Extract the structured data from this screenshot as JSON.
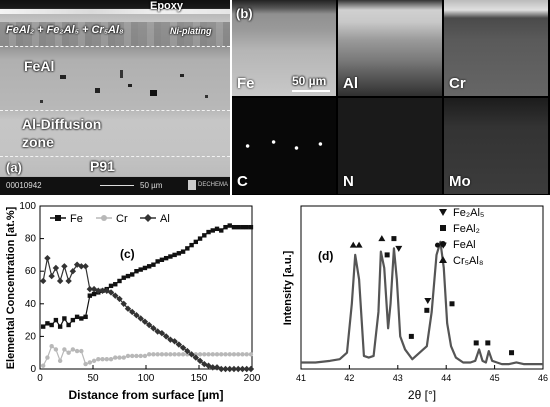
{
  "panel_a": {
    "epoxy_label": "Epoxy",
    "phases_label": "FeAl₂ + Fe₂Al₅ + Cr₅Al₈",
    "ni_plating_label": "Ni-plating",
    "feal_label": "FeAl",
    "al_diffusion_label": "Al-Diffusion",
    "zone_label": "zone",
    "p91_label": "P91",
    "panel_letter": "(a)",
    "image_id": "00010942",
    "scale_bar": "50 µm",
    "logo_text": "DECHEMA"
  },
  "panel_b": {
    "panel_letter": "(b)",
    "scale_bar": "50 µm",
    "maps": [
      "Fe",
      "Al",
      "Cr",
      "C",
      "N",
      "Mo"
    ]
  },
  "chart_data": [
    {
      "type": "line",
      "panel_letter": "(c)",
      "xlabel": "Distance from surface [µm]",
      "ylabel": "Elemental Concentration [at.%]",
      "xlim": [
        0,
        200
      ],
      "ylim": [
        0,
        100
      ],
      "xticks": [
        0,
        50,
        100,
        150,
        200
      ],
      "yticks": [
        0,
        20,
        40,
        60,
        80,
        100
      ],
      "legend_position": "top",
      "series": [
        {
          "name": "Fe",
          "color": "#111111",
          "marker": "square",
          "x": [
            3,
            7,
            11,
            15,
            19,
            23,
            27,
            31,
            35,
            39,
            43,
            47,
            51,
            55,
            59,
            63,
            67,
            71,
            75,
            79,
            83,
            87,
            91,
            95,
            99,
            103,
            107,
            111,
            115,
            119,
            123,
            127,
            131,
            135,
            139,
            143,
            147,
            151,
            155,
            159,
            163,
            167,
            171,
            175,
            179,
            183,
            187,
            191,
            195,
            199
          ],
          "y": [
            26,
            28,
            27,
            30,
            26,
            31,
            27,
            30,
            32,
            31,
            32,
            45,
            46,
            47,
            48,
            49,
            51,
            52,
            54,
            56,
            57,
            58,
            60,
            61,
            62,
            63,
            64,
            66,
            67,
            68,
            69,
            70,
            71,
            72,
            74,
            76,
            78,
            80,
            82,
            84,
            85,
            86,
            85,
            87,
            88,
            87,
            87,
            87,
            87,
            87
          ]
        },
        {
          "name": "Cr",
          "color": "#b8b8b8",
          "marker": "circle",
          "x": [
            3,
            7,
            11,
            15,
            19,
            23,
            27,
            31,
            35,
            39,
            43,
            47,
            51,
            55,
            59,
            63,
            67,
            71,
            75,
            79,
            83,
            87,
            91,
            95,
            99,
            103,
            107,
            111,
            115,
            119,
            123,
            127,
            131,
            135,
            139,
            143,
            147,
            151,
            155,
            159,
            163,
            167,
            171,
            175,
            179,
            183,
            187,
            191,
            195,
            199
          ],
          "y": [
            2,
            7,
            14,
            12,
            5,
            12,
            10,
            12,
            11,
            11,
            3,
            4,
            5,
            6,
            6,
            6,
            6,
            7,
            7,
            7,
            8,
            8,
            8,
            8,
            8,
            9,
            9,
            9,
            9,
            9,
            9,
            9,
            9,
            9,
            9,
            9,
            9,
            9,
            9,
            9,
            9,
            9,
            9,
            9,
            9,
            9,
            9,
            9,
            9,
            9
          ]
        },
        {
          "name": "Al",
          "color": "#333333",
          "marker": "diamond",
          "x": [
            3,
            7,
            11,
            15,
            19,
            23,
            27,
            31,
            35,
            39,
            43,
            47,
            51,
            55,
            59,
            63,
            67,
            71,
            75,
            79,
            83,
            87,
            91,
            95,
            99,
            103,
            107,
            111,
            115,
            119,
            123,
            127,
            131,
            135,
            139,
            143,
            147,
            151,
            155,
            159,
            163,
            167,
            171,
            175,
            179,
            183,
            187,
            191,
            195,
            199
          ],
          "y": [
            54,
            68,
            57,
            62,
            54,
            63,
            54,
            60,
            64,
            63,
            63,
            49,
            49,
            48,
            48,
            48,
            47,
            45,
            43,
            40,
            37,
            35,
            33,
            31,
            29,
            27,
            25,
            23,
            22,
            20,
            18,
            17,
            15,
            13,
            11,
            9,
            7,
            5,
            3,
            2,
            1,
            1,
            0,
            0,
            0,
            0,
            0,
            0,
            0,
            0
          ]
        }
      ]
    },
    {
      "type": "line",
      "panel_letter": "(d)",
      "xlabel": "2θ [°]",
      "ylabel": "Intensity [a.u.]",
      "xlim": [
        41,
        46
      ],
      "xticks": [
        41,
        42,
        43,
        44,
        45,
        46
      ],
      "y_ticks_shown": false,
      "series": [
        {
          "color": "#555555",
          "x": [
            41.0,
            41.3,
            41.6,
            41.8,
            41.95,
            42.05,
            42.12,
            42.2,
            42.3,
            42.4,
            42.5,
            42.6,
            42.65,
            42.72,
            42.8,
            42.85,
            42.92,
            42.98,
            43.05,
            43.15,
            43.3,
            43.45,
            43.6,
            43.7,
            43.8,
            43.88,
            43.95,
            44.02,
            44.1,
            44.2,
            44.35,
            44.5,
            44.6,
            44.68,
            44.75,
            44.82,
            44.88,
            44.95,
            45.05,
            45.15,
            45.3,
            45.45,
            45.6,
            45.8,
            46.0
          ],
          "y": [
            4,
            4,
            5,
            6,
            10,
            40,
            70,
            55,
            8,
            7,
            8,
            35,
            72,
            62,
            25,
            40,
            74,
            55,
            20,
            12,
            6,
            10,
            14,
            35,
            70,
            78,
            62,
            28,
            14,
            7,
            4,
            4,
            5,
            12,
            5,
            4,
            11,
            5,
            4,
            3,
            3,
            4,
            3,
            3,
            3
          ]
        }
      ],
      "legend": [
        {
          "marker": "triangle-down",
          "label": "Fe₂Al₅"
        },
        {
          "marker": "square",
          "label": "FeAl₂"
        },
        {
          "marker": "circle",
          "label": "FeAl"
        },
        {
          "marker": "triangle-up",
          "label": "Cr₅Al₈"
        }
      ],
      "peak_markers": [
        {
          "marker": "triangle-up",
          "x": 42.08,
          "y": 76
        },
        {
          "marker": "triangle-up",
          "x": 42.2,
          "y": 76
        },
        {
          "marker": "triangle-up",
          "x": 42.67,
          "y": 80
        },
        {
          "marker": "square",
          "x": 42.78,
          "y": 70
        },
        {
          "marker": "square",
          "x": 42.92,
          "y": 80
        },
        {
          "marker": "triangle-down",
          "x": 43.02,
          "y": 74
        },
        {
          "marker": "square",
          "x": 43.28,
          "y": 20
        },
        {
          "marker": "triangle-down",
          "x": 43.62,
          "y": 42
        },
        {
          "marker": "square",
          "x": 43.6,
          "y": 36
        },
        {
          "marker": "circle",
          "x": 43.82,
          "y": 76
        },
        {
          "marker": "triangle-down",
          "x": 43.94,
          "y": 76
        },
        {
          "marker": "square",
          "x": 44.12,
          "y": 40
        },
        {
          "marker": "square",
          "x": 44.62,
          "y": 16
        },
        {
          "marker": "square",
          "x": 44.86,
          "y": 16
        },
        {
          "marker": "square",
          "x": 45.35,
          "y": 10
        }
      ]
    }
  ]
}
